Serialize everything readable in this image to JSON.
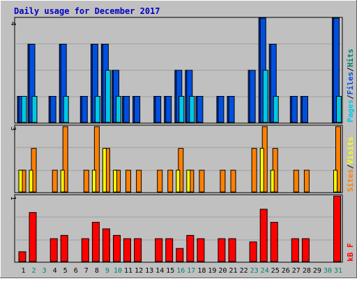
{
  "title": "Daily usage for December 2017",
  "colors": {
    "background": "#c0c0c0",
    "plot_background": "#c0c0c0",
    "title": "#0000c0",
    "pages": "#00c8e8",
    "files": "#0050e0",
    "hits": "#00806b",
    "sites": "#ff8000",
    "visits": "#ffff00",
    "kbf": "#ff0000",
    "weekend_day": "#00806b",
    "weekday_day": "#000000"
  },
  "chart_data": [
    {
      "type": "bar",
      "panel": "hits",
      "axis_max_label": "4",
      "ylim": [
        0,
        4
      ],
      "legend": [
        "Pages",
        "Files",
        "Hits"
      ],
      "categories": [
        "1",
        "2",
        "3",
        "4",
        "5",
        "6",
        "7",
        "8",
        "9",
        "10",
        "11",
        "12",
        "13",
        "14",
        "15",
        "16",
        "17",
        "18",
        "19",
        "20",
        "21",
        "22",
        "23",
        "24",
        "25",
        "26",
        "27",
        "28",
        "29",
        "30",
        "31"
      ],
      "series": [
        {
          "name": "Hits",
          "values": [
            1,
            3,
            0,
            1,
            3,
            0,
            1,
            3,
            3,
            2,
            1,
            1,
            0,
            1,
            1,
            2,
            2,
            1,
            0,
            1,
            1,
            0,
            2,
            4,
            3,
            0,
            1,
            1,
            0,
            0,
            4
          ]
        },
        {
          "name": "Files",
          "values": [
            1,
            3,
            0,
            1,
            3,
            0,
            1,
            3,
            3,
            2,
            1,
            1,
            0,
            1,
            1,
            2,
            2,
            1,
            0,
            1,
            1,
            0,
            2,
            4,
            3,
            0,
            1,
            1,
            0,
            0,
            4
          ]
        },
        {
          "name": "Pages",
          "values": [
            1,
            1,
            0,
            0,
            1,
            0,
            0,
            1,
            2,
            1,
            0,
            0,
            0,
            0,
            0,
            1,
            1,
            0,
            0,
            0,
            0,
            0,
            0,
            2,
            1,
            0,
            0,
            0,
            0,
            0,
            1
          ]
        }
      ]
    },
    {
      "type": "bar",
      "panel": "visits",
      "axis_max_label": "3",
      "ylim": [
        0,
        3
      ],
      "legend": [
        "Sites",
        "Visits"
      ],
      "categories": [
        "1",
        "2",
        "3",
        "4",
        "5",
        "6",
        "7",
        "8",
        "9",
        "10",
        "11",
        "12",
        "13",
        "14",
        "15",
        "16",
        "17",
        "18",
        "19",
        "20",
        "21",
        "22",
        "23",
        "24",
        "25",
        "26",
        "27",
        "28",
        "29",
        "30",
        "31"
      ],
      "series": [
        {
          "name": "Sites",
          "values": [
            1,
            2,
            0,
            1,
            3,
            0,
            1,
            3,
            2,
            1,
            1,
            1,
            0,
            1,
            1,
            2,
            1,
            1,
            0,
            1,
            1,
            0,
            2,
            3,
            2,
            0,
            1,
            1,
            0,
            0,
            3
          ]
        },
        {
          "name": "Visits",
          "values": [
            1,
            1,
            0,
            0,
            1,
            0,
            0,
            1,
            2,
            1,
            0,
            0,
            0,
            0,
            0,
            1,
            1,
            0,
            0,
            0,
            0,
            0,
            0,
            2,
            1,
            0,
            0,
            0,
            0,
            0,
            1
          ]
        }
      ]
    },
    {
      "type": "bar",
      "panel": "kbf",
      "axis_max_label": "1",
      "ylim": [
        0,
        1
      ],
      "legend": [
        "kB F"
      ],
      "categories": [
        "1",
        "2",
        "3",
        "4",
        "5",
        "6",
        "7",
        "8",
        "9",
        "10",
        "11",
        "12",
        "13",
        "14",
        "15",
        "16",
        "17",
        "18",
        "19",
        "20",
        "21",
        "22",
        "23",
        "24",
        "25",
        "26",
        "27",
        "28",
        "29",
        "30",
        "31"
      ],
      "series": [
        {
          "name": "kB F",
          "values": [
            0.15,
            0.75,
            0,
            0.35,
            0.4,
            0,
            0.35,
            0.6,
            0.5,
            0.4,
            0.35,
            0.35,
            0,
            0.35,
            0.35,
            0.2,
            0.4,
            0.35,
            0,
            0.35,
            0.35,
            0,
            0.3,
            0.8,
            0.6,
            0,
            0.35,
            0.35,
            0,
            0,
            1.0
          ]
        }
      ]
    }
  ],
  "x_labels": [
    {
      "text": "1",
      "weekend": false
    },
    {
      "text": "2",
      "weekend": true
    },
    {
      "text": "3",
      "weekend": true
    },
    {
      "text": "4",
      "weekend": false
    },
    {
      "text": "5",
      "weekend": false
    },
    {
      "text": "6",
      "weekend": false
    },
    {
      "text": "7",
      "weekend": false
    },
    {
      "text": "8",
      "weekend": false
    },
    {
      "text": "9",
      "weekend": true
    },
    {
      "text": "10",
      "weekend": true
    },
    {
      "text": "11",
      "weekend": false
    },
    {
      "text": "12",
      "weekend": false
    },
    {
      "text": "13",
      "weekend": false
    },
    {
      "text": "14",
      "weekend": false
    },
    {
      "text": "15",
      "weekend": false
    },
    {
      "text": "16",
      "weekend": true
    },
    {
      "text": "17",
      "weekend": true
    },
    {
      "text": "18",
      "weekend": false
    },
    {
      "text": "19",
      "weekend": false
    },
    {
      "text": "20",
      "weekend": false
    },
    {
      "text": "21",
      "weekend": false
    },
    {
      "text": "22",
      "weekend": false
    },
    {
      "text": "23",
      "weekend": true
    },
    {
      "text": "24",
      "weekend": true
    },
    {
      "text": "25",
      "weekend": false
    },
    {
      "text": "26",
      "weekend": false
    },
    {
      "text": "27",
      "weekend": false
    },
    {
      "text": "28",
      "weekend": false
    },
    {
      "text": "29",
      "weekend": false
    },
    {
      "text": "30",
      "weekend": true
    },
    {
      "text": "31",
      "weekend": true
    }
  ],
  "legend_text": {
    "pages": "Pages",
    "files": "Files",
    "hits": "Hits",
    "sites": "Sites",
    "visits": "Visits",
    "kbf": "kB F",
    "separator": "/"
  }
}
